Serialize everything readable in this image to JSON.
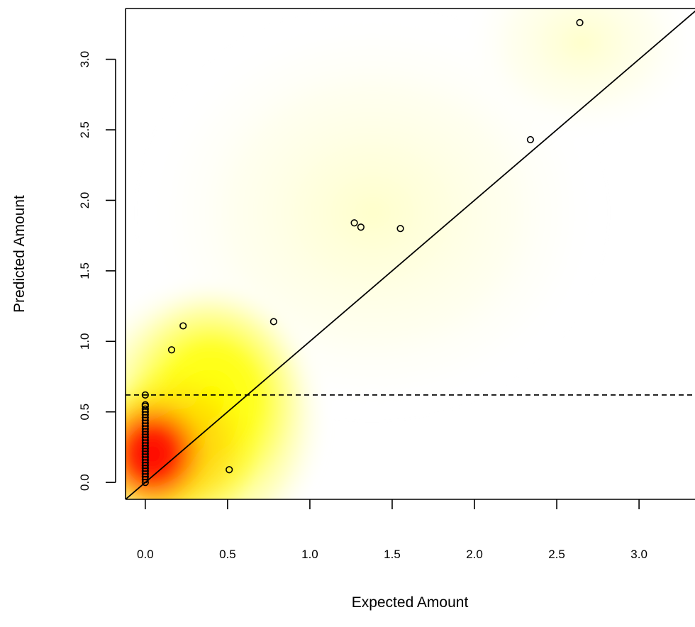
{
  "chart_data": {
    "type": "scatter",
    "xlabel": "Expected Amount",
    "ylabel": "Predicted Amount",
    "xlim": [
      -0.12,
      3.36
    ],
    "ylim": [
      -0.12,
      3.36
    ],
    "x_ticks": [
      0.0,
      0.5,
      1.0,
      1.5,
      2.0,
      2.5,
      3.0
    ],
    "x_tick_labels": [
      "0.0",
      "0.5",
      "1.0",
      "1.5",
      "2.0",
      "2.5",
      "3.0"
    ],
    "y_ticks": [
      0.0,
      0.5,
      1.0,
      1.5,
      2.0,
      2.5,
      3.0
    ],
    "y_tick_labels": [
      "0.0",
      "0.5",
      "1.0",
      "1.5",
      "2.0",
      "2.5",
      "3.0"
    ],
    "grid": false,
    "background": "smoothed density heatmap (white-yellow-red)",
    "reference_lines": [
      {
        "kind": "identity",
        "style": "solid",
        "slope": 1,
        "intercept": 0
      },
      {
        "kind": "horizontal",
        "style": "dashed",
        "y": 0.62
      }
    ],
    "series": [
      {
        "marker": "open-circle",
        "points": [
          {
            "x": 0.0,
            "y": 0.0
          },
          {
            "x": 0.0,
            "y": 0.02
          },
          {
            "x": 0.0,
            "y": 0.04
          },
          {
            "x": 0.0,
            "y": 0.06
          },
          {
            "x": 0.0,
            "y": 0.08
          },
          {
            "x": 0.0,
            "y": 0.1
          },
          {
            "x": 0.0,
            "y": 0.12
          },
          {
            "x": 0.0,
            "y": 0.14
          },
          {
            "x": 0.0,
            "y": 0.16
          },
          {
            "x": 0.0,
            "y": 0.18
          },
          {
            "x": 0.0,
            "y": 0.2
          },
          {
            "x": 0.0,
            "y": 0.22
          },
          {
            "x": 0.0,
            "y": 0.24
          },
          {
            "x": 0.0,
            "y": 0.26
          },
          {
            "x": 0.0,
            "y": 0.28
          },
          {
            "x": 0.0,
            "y": 0.3
          },
          {
            "x": 0.0,
            "y": 0.32
          },
          {
            "x": 0.0,
            "y": 0.34
          },
          {
            "x": 0.0,
            "y": 0.36
          },
          {
            "x": 0.0,
            "y": 0.38
          },
          {
            "x": 0.0,
            "y": 0.4
          },
          {
            "x": 0.0,
            "y": 0.42
          },
          {
            "x": 0.0,
            "y": 0.44
          },
          {
            "x": 0.0,
            "y": 0.46
          },
          {
            "x": 0.0,
            "y": 0.48
          },
          {
            "x": 0.0,
            "y": 0.5
          },
          {
            "x": 0.0,
            "y": 0.52
          },
          {
            "x": 0.0,
            "y": 0.54
          },
          {
            "x": 0.0,
            "y": 0.55
          },
          {
            "x": 0.0,
            "y": 0.62
          },
          {
            "x": 0.16,
            "y": 0.94
          },
          {
            "x": 0.23,
            "y": 1.11
          },
          {
            "x": 0.51,
            "y": 0.09
          },
          {
            "x": 0.78,
            "y": 1.14
          },
          {
            "x": 1.27,
            "y": 1.84
          },
          {
            "x": 1.31,
            "y": 1.81
          },
          {
            "x": 1.55,
            "y": 1.8
          },
          {
            "x": 2.34,
            "y": 2.43
          },
          {
            "x": 2.64,
            "y": 3.26
          }
        ]
      }
    ]
  }
}
